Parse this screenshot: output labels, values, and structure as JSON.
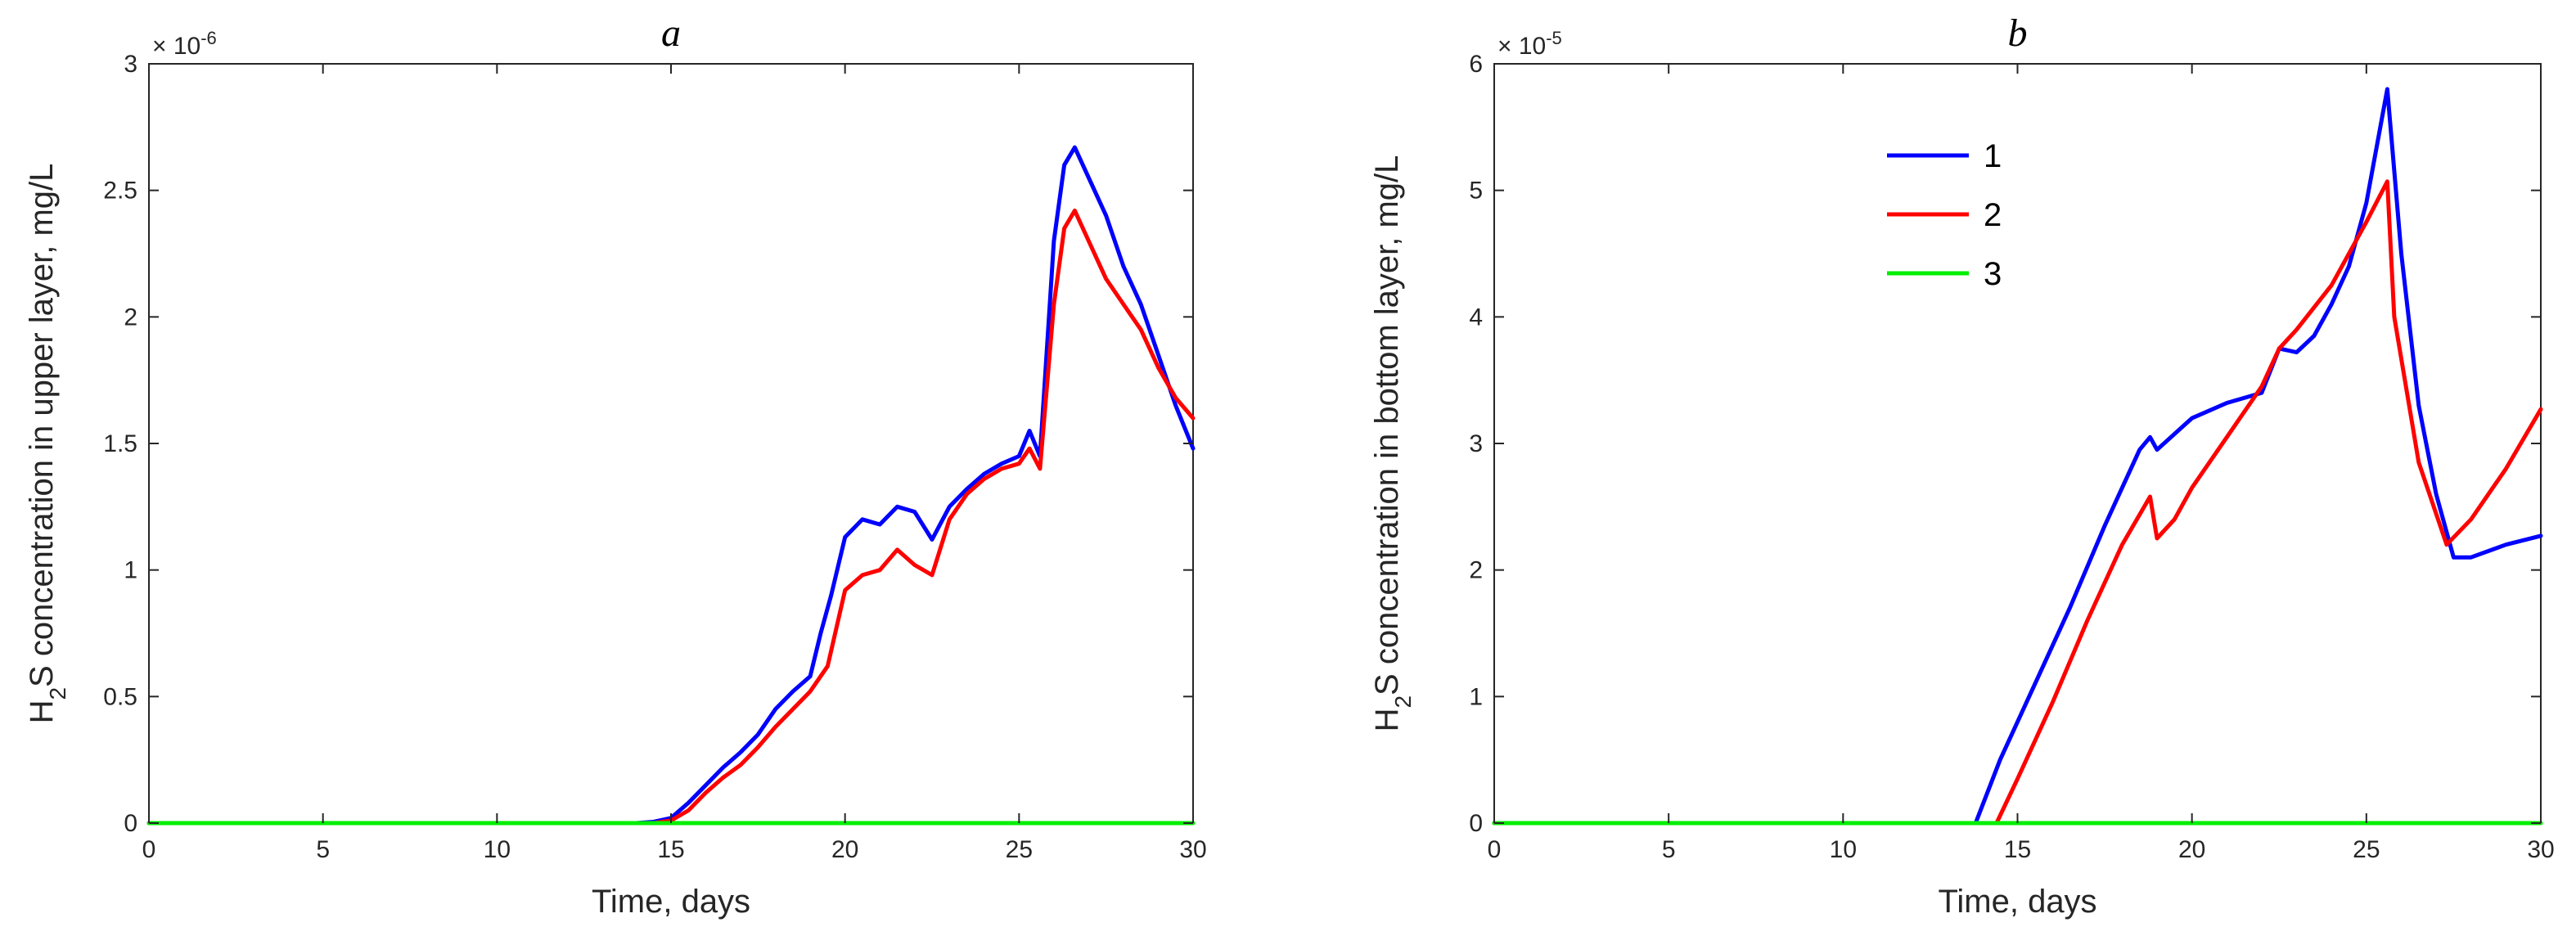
{
  "chart_data": [
    {
      "type": "line",
      "title": "a",
      "xlabel": "Time, days",
      "ylabel": "H2S concentration in upper layer, mg/L",
      "ylabel_parts": {
        "pre": "H",
        "sub": "2",
        "post": "S concentration in upper layer, mg/L"
      },
      "exponent": {
        "base": "× 10",
        "power": "-6"
      },
      "xlim": [
        0,
        30
      ],
      "ylim": [
        0,
        3
      ],
      "xticks": [
        0,
        5,
        10,
        15,
        20,
        25,
        30
      ],
      "yticks": [
        0,
        0.5,
        1,
        1.5,
        2,
        2.5,
        3
      ],
      "ytick_labels": [
        "0",
        "0.5",
        "1",
        "1.5",
        "2",
        "2.5",
        "3"
      ],
      "series": [
        {
          "name": "1",
          "color": "#0000ff",
          "x": [
            0,
            14.0,
            14.5,
            15.0,
            15.5,
            16.0,
            16.5,
            17.0,
            17.5,
            18.0,
            18.5,
            19.0,
            19.3,
            19.6,
            20.0,
            20.5,
            21.0,
            21.5,
            22.0,
            22.5,
            23.0,
            23.5,
            24.0,
            24.5,
            25.0,
            25.3,
            25.6,
            26.0,
            26.3,
            26.6,
            27.0,
            27.5,
            28.0,
            28.5,
            29.0,
            29.5,
            30.0
          ],
          "y": [
            0,
            0,
            0.005,
            0.02,
            0.08,
            0.15,
            0.22,
            0.28,
            0.35,
            0.45,
            0.52,
            0.58,
            0.75,
            0.9,
            1.13,
            1.2,
            1.18,
            1.25,
            1.23,
            1.12,
            1.25,
            1.32,
            1.38,
            1.42,
            1.45,
            1.55,
            1.45,
            2.3,
            2.6,
            2.67,
            2.55,
            2.4,
            2.2,
            2.05,
            1.85,
            1.65,
            1.48
          ]
        },
        {
          "name": "2",
          "color": "#ff0000",
          "x": [
            0,
            14.5,
            15.0,
            15.5,
            16.0,
            16.5,
            17.0,
            17.5,
            18.0,
            18.5,
            19.0,
            19.5,
            20.0,
            20.5,
            21.0,
            21.5,
            22.0,
            22.5,
            23.0,
            23.5,
            24.0,
            24.5,
            25.0,
            25.3,
            25.6,
            26.0,
            26.3,
            26.6,
            27.0,
            27.5,
            28.0,
            28.5,
            29.0,
            29.5,
            30.0
          ],
          "y": [
            0,
            0,
            0.01,
            0.05,
            0.12,
            0.18,
            0.23,
            0.3,
            0.38,
            0.45,
            0.52,
            0.62,
            0.92,
            0.98,
            1.0,
            1.08,
            1.02,
            0.98,
            1.2,
            1.3,
            1.36,
            1.4,
            1.42,
            1.48,
            1.4,
            2.05,
            2.35,
            2.42,
            2.3,
            2.15,
            2.05,
            1.95,
            1.8,
            1.68,
            1.6
          ]
        },
        {
          "name": "3",
          "color": "#00ee00",
          "x": [
            0,
            30
          ],
          "y": [
            0,
            0
          ]
        }
      ]
    },
    {
      "type": "line",
      "title": "b",
      "xlabel": "Time, days",
      "ylabel": "H2S concentration in bottom layer, mg/L",
      "ylabel_parts": {
        "pre": "H",
        "sub": "2",
        "post": "S concentration in bottom layer, mg/L"
      },
      "exponent": {
        "base": "× 10",
        "power": "-5"
      },
      "xlim": [
        0,
        30
      ],
      "ylim": [
        0,
        6
      ],
      "xticks": [
        0,
        5,
        10,
        15,
        20,
        25,
        30
      ],
      "yticks": [
        0,
        1,
        2,
        3,
        4,
        5,
        6
      ],
      "ytick_labels": [
        "0",
        "1",
        "2",
        "3",
        "4",
        "5",
        "6"
      ],
      "legend": {
        "position": "upper-center",
        "entries": [
          "1",
          "2",
          "3"
        ]
      },
      "series": [
        {
          "name": "1",
          "color": "#0000ff",
          "x": [
            0,
            13.8,
            14.5,
            15.5,
            16.5,
            17.5,
            18.5,
            18.8,
            19.0,
            20.0,
            21.0,
            22.0,
            22.5,
            23.0,
            23.5,
            24.0,
            24.5,
            25.0,
            25.6,
            26.0,
            26.5,
            27.0,
            27.5,
            28.0,
            29.0,
            30.0
          ],
          "y": [
            0,
            0,
            0.5,
            1.1,
            1.7,
            2.35,
            2.95,
            3.05,
            2.95,
            3.2,
            3.32,
            3.4,
            3.75,
            3.72,
            3.85,
            4.1,
            4.4,
            4.9,
            5.8,
            4.5,
            3.3,
            2.6,
            2.1,
            2.1,
            2.2,
            2.27
          ]
        },
        {
          "name": "2",
          "color": "#ff0000",
          "x": [
            0,
            14.4,
            15.0,
            16.0,
            17.0,
            18.0,
            18.8,
            19.0,
            19.5,
            20.0,
            21.0,
            22.0,
            22.5,
            23.0,
            24.0,
            25.0,
            25.6,
            25.8,
            26.5,
            27.3,
            28.0,
            29.0,
            30.0
          ],
          "y": [
            0,
            0,
            0.35,
            0.95,
            1.6,
            2.2,
            2.58,
            2.25,
            2.4,
            2.65,
            3.05,
            3.45,
            3.75,
            3.9,
            4.25,
            4.75,
            5.07,
            4.0,
            2.85,
            2.2,
            2.4,
            2.8,
            3.27
          ]
        },
        {
          "name": "3",
          "color": "#00ee00",
          "x": [
            0,
            30
          ],
          "y": [
            0,
            0
          ]
        }
      ]
    }
  ]
}
